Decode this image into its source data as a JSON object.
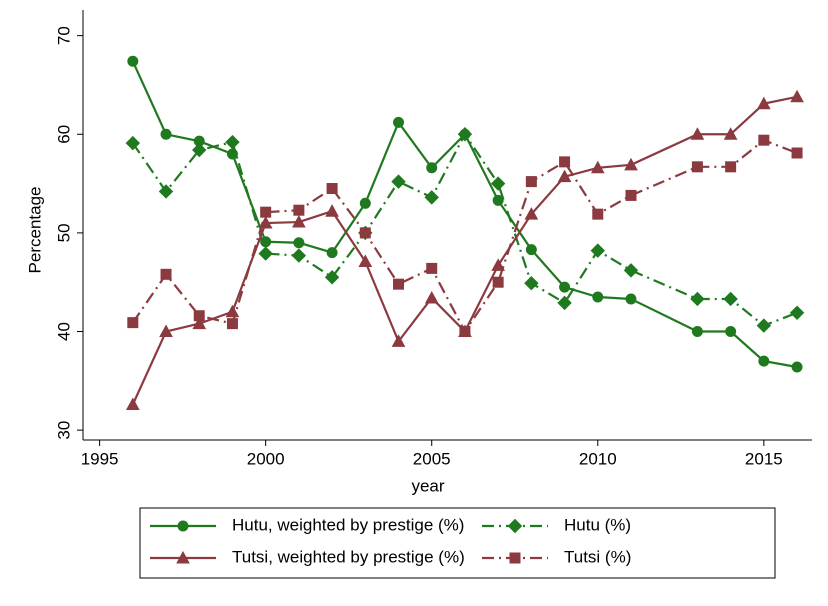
{
  "chart_data": {
    "type": "line",
    "x_label": "year",
    "y_label": "Percentage",
    "x": [
      1996,
      1997,
      1998,
      1999,
      2000,
      2001,
      2002,
      2003,
      2004,
      2005,
      2006,
      2007,
      2008,
      2009,
      2010,
      2011,
      2013,
      2014,
      2015,
      2016
    ],
    "series": [
      {
        "name": "Hutu, weighted by prestige (%)",
        "color": "#1f7a1f",
        "marker": "circle",
        "dash": "solid",
        "values": [
          67.4,
          60.0,
          59.3,
          58.0,
          49.1,
          49.0,
          48.0,
          53.0,
          61.2,
          56.6,
          60.0,
          53.3,
          48.3,
          44.5,
          43.5,
          43.3,
          40.0,
          40.0,
          37.0,
          36.4
        ]
      },
      {
        "name": "Hutu (%)",
        "color": "#1f7a1f",
        "marker": "diamond",
        "dash": "dash-dot",
        "values": [
          59.1,
          54.2,
          58.4,
          59.2,
          47.9,
          47.7,
          45.5,
          50.0,
          55.2,
          53.6,
          60.0,
          55.0,
          44.9,
          42.9,
          48.2,
          46.2,
          43.3,
          43.3,
          40.6,
          41.9
        ]
      },
      {
        "name": "Tutsi, weighted by prestige (%)",
        "color": "#8b3a3f",
        "marker": "triangle",
        "dash": "solid",
        "values": [
          32.6,
          40.0,
          40.8,
          42.0,
          51.0,
          51.1,
          52.2,
          47.1,
          39.0,
          43.4,
          40.0,
          46.7,
          51.9,
          55.7,
          56.6,
          56.9,
          60.0,
          60.0,
          63.1,
          63.8
        ]
      },
      {
        "name": "Tutsi (%)",
        "color": "#8b3a3f",
        "marker": "square",
        "dash": "dash-dot",
        "values": [
          40.9,
          45.8,
          41.6,
          40.8,
          52.1,
          52.3,
          54.5,
          50.0,
          44.8,
          46.4,
          40.0,
          45.0,
          55.2,
          57.2,
          51.9,
          53.8,
          56.7,
          56.7,
          59.4,
          58.1
        ]
      }
    ],
    "xlim": [
      1994.5,
      2016.45
    ],
    "xticks": [
      1995,
      2000,
      2005,
      2010,
      2015
    ],
    "ylim": [
      29,
      72.6
    ],
    "yticks": [
      30,
      40,
      50,
      60,
      70
    ],
    "grid": false,
    "legend": "bottom"
  }
}
